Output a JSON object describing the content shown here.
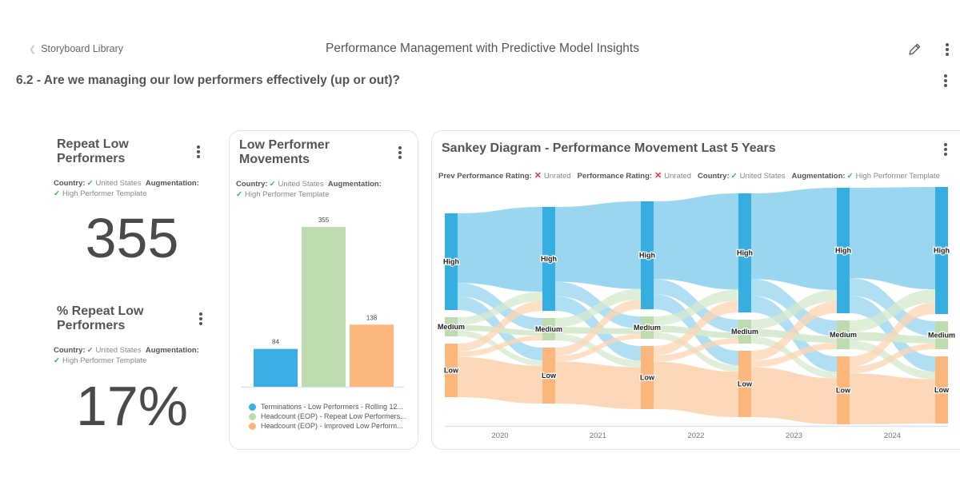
{
  "header": {
    "back_label": "Storyboard Library",
    "storyboard_title": "Performance Management with Predictive Model Insights",
    "page_title": "6.2 - Are we managing our low performers effectively (up or out)?"
  },
  "filters": {
    "country_label": "Country:",
    "country_value": "United States",
    "augmentation_label": "Augmentation:",
    "augmentation_value": "High Performer Template",
    "prev_rating_label": "Prev Performance Rating:",
    "prev_rating_value": "Unrated",
    "rating_label": "Performance Rating:",
    "rating_value": "Unrated"
  },
  "kpi_repeat": {
    "title_line1": "Repeat Low",
    "title_line2": "Performers",
    "value": "355"
  },
  "kpi_pct": {
    "title_line1": "% Repeat Low",
    "title_line2": "Performers",
    "value": "17%"
  },
  "movements": {
    "title_line1": "Low Performer",
    "title_line2": "Movements"
  },
  "sankey": {
    "title": "Sankey Diagram - Performance Movement Last 5 Years"
  },
  "chart_data": [
    {
      "type": "bar",
      "title": "Low Performer Movements",
      "categories": [
        "Terminations - Low Performers - Rolling 12...",
        "Headcount (EOP) - Repeat Low Performers...",
        "Headcount (EOP) - Improved Low Perform..."
      ],
      "values": [
        84,
        355,
        138
      ],
      "value_labels": [
        "84",
        "355",
        "138"
      ],
      "colors": [
        "#3aaee3",
        "#bddbaf",
        "#fbb77c"
      ],
      "legend_position": "bottom",
      "ylim": [
        0,
        355
      ]
    },
    {
      "type": "sankey",
      "title": "Sankey Diagram - Performance Movement Last 5 Years",
      "x_tick_labels": [
        "2020",
        "2021",
        "2022",
        "2023",
        "2024"
      ],
      "node_labels": [
        "High",
        "Medium",
        "Low"
      ],
      "colors": {
        "High": "#36aee2",
        "Medium": "#bddbaf",
        "Low": "#fbb77c"
      },
      "columns": [
        {
          "High": 121,
          "Medium": 24,
          "Low": 67
        },
        {
          "High": 130,
          "Medium": 28,
          "Low": 70
        },
        {
          "High": 135,
          "Medium": 28,
          "Low": 79
        },
        {
          "High": 149,
          "Medium": 30,
          "Low": 83
        },
        {
          "High": 157,
          "Medium": 36,
          "Low": 85
        },
        {
          "High": 159,
          "Medium": 35,
          "Low": 84
        }
      ]
    }
  ]
}
